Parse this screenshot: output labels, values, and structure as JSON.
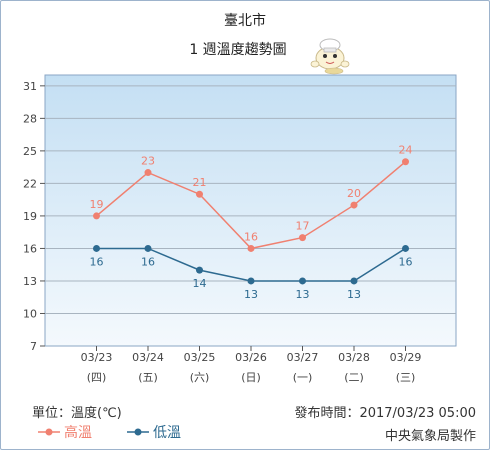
{
  "chart_data": {
    "type": "line",
    "title": "臺北市",
    "subtitle": "1 週溫度趨勢圖",
    "categories": [
      "03/23",
      "03/24",
      "03/25",
      "03/26",
      "03/27",
      "03/28",
      "03/29"
    ],
    "weekdays": [
      "(四)",
      "(五)",
      "(六)",
      "(日)",
      "(一)",
      "(二)",
      "(三)"
    ],
    "yticks": [
      7,
      10,
      13,
      16,
      19,
      22,
      25,
      28,
      31
    ],
    "ylim": [
      7,
      32
    ],
    "grid": true,
    "legend_position": "bottom-left",
    "series": [
      {
        "name": "高溫",
        "color": "#f08070",
        "values": [
          19,
          23,
          21,
          16,
          17,
          20,
          24
        ]
      },
      {
        "name": "低溫",
        "color": "#2d6a90",
        "values": [
          16,
          16,
          14,
          13,
          13,
          13,
          16
        ]
      }
    ]
  },
  "footer": {
    "unit_label": "單位：溫度(℃)",
    "issued": "發布時間：2017/03/23 05:00",
    "agency": "中央氣象局製作"
  },
  "colors": {
    "plot_top": "#c4dff3",
    "plot_bottom": "#f4f9fd",
    "border": "#9db3cc"
  },
  "icons": [
    "mascot-icon"
  ]
}
